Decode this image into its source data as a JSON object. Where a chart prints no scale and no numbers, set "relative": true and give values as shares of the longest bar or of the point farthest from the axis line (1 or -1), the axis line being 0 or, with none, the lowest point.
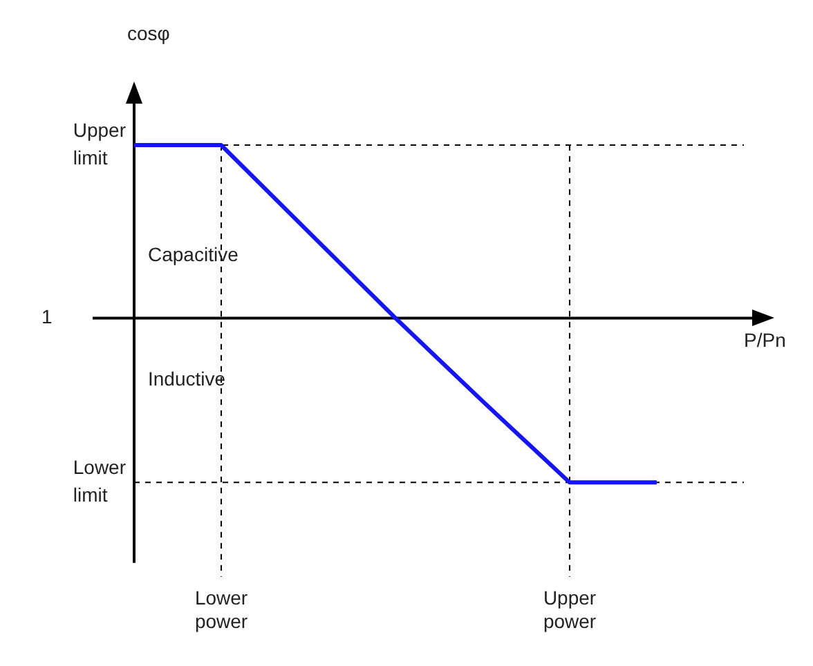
{
  "chart_data": {
    "type": "line",
    "relative": true,
    "xlabel": "P/Pn",
    "categories": [
      null,
      "Lower power",
      null,
      null,
      null,
      "Upper power",
      null,
      null
    ],
    "series": [
      {
        "color": "#1414ff",
        "values": [
          1,
          1,
          0.5,
          0,
          -0.48,
          -0.95,
          -0.95,
          null
        ]
      }
    ],
    "ref_lines": [
      {
        "axis": "y",
        "value": 1,
        "label": "Upper limit",
        "line_style": "dashed",
        "color": "#000000"
      },
      {
        "axis": "y",
        "value": -0.95,
        "label": "Lower limit",
        "line_style": "dashed",
        "color": "#000000"
      },
      {
        "axis": "x",
        "value": "Lower power",
        "line_style": "dashed",
        "color": "#000000"
      },
      {
        "axis": "x",
        "value": "Upper power",
        "line_style": "dashed",
        "color": "#000000"
      }
    ],
    "annotations": [
      "cosφ",
      "Capacitive",
      "Inductive",
      "1"
    ],
    "marker": "none",
    "line_style": "solid",
    "grid": false,
    "legend": false
  }
}
